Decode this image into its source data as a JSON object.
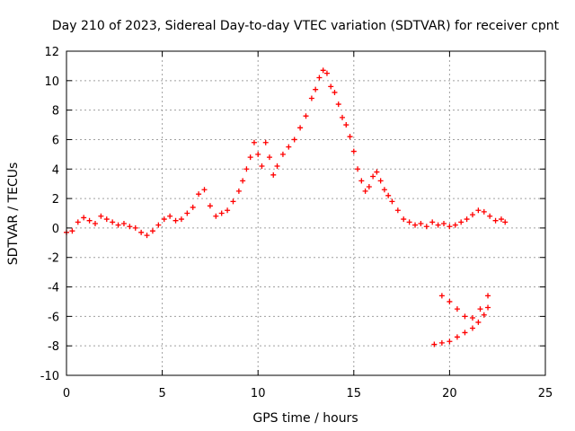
{
  "chart_data": {
    "type": "scatter",
    "title": "Day 210 of 2023, Sidereal Day-to-day VTEC variation (SDTVAR) for receiver cpnt",
    "xlabel": "GPS time / hours",
    "ylabel": "SDTVAR / TECUs",
    "xlim": [
      0,
      25
    ],
    "ylim": [
      -10,
      12
    ],
    "xticks": [
      0,
      5,
      10,
      15,
      20,
      25
    ],
    "yticks": [
      -10,
      -8,
      -6,
      -4,
      -2,
      0,
      2,
      4,
      6,
      8,
      10,
      12
    ],
    "grid": true,
    "marker": "plus",
    "color": "#ff0000",
    "series": [
      {
        "name": "main",
        "x": [
          0.0,
          0.3,
          0.6,
          0.9,
          1.2,
          1.5,
          1.8,
          2.1,
          2.4,
          2.7,
          3.0,
          3.3,
          3.6,
          3.9,
          4.2,
          4.5,
          4.8,
          5.1,
          5.4,
          5.7,
          6.0,
          6.3,
          6.6,
          6.9,
          7.2,
          7.5,
          7.8,
          8.1,
          8.4,
          8.7,
          9.0,
          9.2,
          9.4,
          9.6,
          9.8,
          10.0,
          10.2,
          10.4,
          10.6,
          10.8,
          11.0,
          11.3,
          11.6,
          11.9,
          12.2,
          12.5,
          12.8,
          13.0,
          13.2,
          13.4,
          13.6,
          13.8,
          14.0,
          14.2,
          14.4,
          14.6,
          14.8,
          15.0,
          15.2,
          15.4,
          15.6,
          15.8,
          16.0,
          16.2,
          16.4,
          16.6,
          16.8,
          17.0,
          17.3,
          17.6,
          17.9,
          18.2,
          18.5,
          18.8,
          19.1,
          19.4,
          19.7,
          20.0,
          20.3,
          20.6,
          20.9,
          21.2,
          21.5,
          21.8,
          22.1,
          22.4,
          22.7,
          22.9
        ],
        "y": [
          -0.3,
          -0.2,
          0.4,
          0.7,
          0.5,
          0.3,
          0.8,
          0.6,
          0.4,
          0.2,
          0.3,
          0.1,
          0.0,
          -0.3,
          -0.5,
          -0.2,
          0.2,
          0.6,
          0.8,
          0.5,
          0.6,
          1.0,
          1.4,
          2.3,
          2.6,
          1.5,
          0.8,
          1.0,
          1.2,
          1.8,
          2.5,
          3.2,
          4.0,
          4.8,
          5.8,
          5.0,
          4.2,
          5.8,
          4.8,
          3.6,
          4.2,
          5.0,
          5.5,
          6.0,
          6.8,
          7.6,
          8.8,
          9.4,
          10.2,
          10.7,
          10.5,
          9.6,
          9.2,
          8.4,
          7.5,
          7.0,
          6.2,
          5.2,
          4.0,
          3.2,
          2.5,
          2.8,
          3.5,
          3.8,
          3.2,
          2.6,
          2.2,
          1.8,
          1.2,
          0.6,
          0.4,
          0.2,
          0.3,
          0.1,
          0.4,
          0.2,
          0.3,
          0.1,
          0.2,
          0.4,
          0.6,
          0.9,
          1.2,
          1.1,
          0.8,
          0.5,
          0.6,
          0.4
        ]
      },
      {
        "name": "secondary-upper",
        "x": [
          19.6,
          20.0,
          20.4,
          20.8,
          21.2,
          21.6,
          22.0
        ],
        "y": [
          -4.6,
          -5.0,
          -5.5,
          -6.0,
          -6.1,
          -5.5,
          -4.6
        ]
      },
      {
        "name": "secondary-lower",
        "x": [
          19.2,
          19.6,
          20.0,
          20.4,
          20.8,
          21.2,
          21.5,
          21.8,
          22.0
        ],
        "y": [
          -7.9,
          -7.8,
          -7.7,
          -7.4,
          -7.1,
          -6.8,
          -6.4,
          -5.9,
          -5.4
        ]
      }
    ]
  }
}
